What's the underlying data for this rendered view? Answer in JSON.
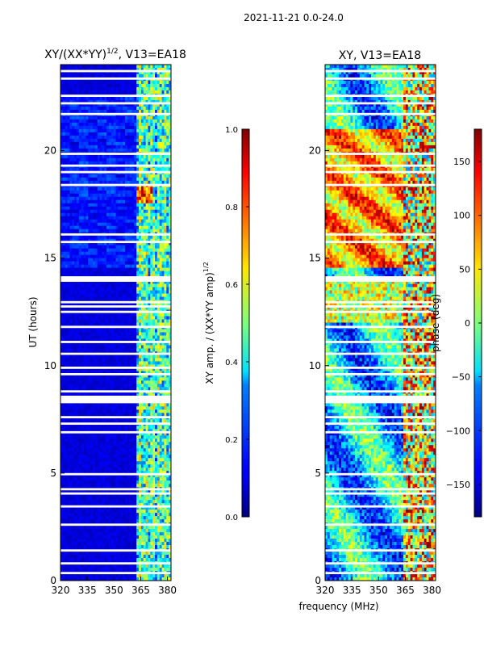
{
  "suptitle": "2021-11-21 0.0-24.0",
  "chart_data": [
    {
      "type": "heatmap",
      "title": "XY/(XX*YY)^1/2, V13=EA18",
      "title_base": "XY/(XX*YY)",
      "title_exp": "1/2",
      "title_tail": ", V13=EA18",
      "ylabel": "UT (hours)",
      "xlabel": "",
      "xlim": [
        320,
        382
      ],
      "ylim": [
        0,
        24
      ],
      "xticks": [
        "320",
        "335",
        "350",
        "365",
        "380"
      ],
      "xtick_values": [
        320,
        335,
        350,
        365,
        380
      ],
      "yticks": [
        "0",
        "5",
        "10",
        "15",
        "20"
      ],
      "ytick_values": [
        0,
        5,
        10,
        15,
        20
      ],
      "colorbar": {
        "label": "XY amp. / (XX*YY amp)^1/2",
        "label_base": "XY amp. / (XX*YY amp)",
        "label_exp": "1/2",
        "range": [
          0.0,
          1.0
        ],
        "ticks": [
          "0.0",
          "0.2",
          "0.4",
          "0.6",
          "0.8",
          "1.0"
        ],
        "tick_values": [
          0.0,
          0.2,
          0.4,
          0.6,
          0.8,
          1.0
        ],
        "colormap": "jet"
      },
      "flagged_rows_hours": [
        23.7,
        23.35,
        22.55,
        22.2,
        21.7,
        19.85,
        19.3,
        19.0,
        18.4,
        16.1,
        15.75,
        14.1,
        13.95,
        12.95,
        12.75,
        12.5,
        11.8,
        11.1,
        10.55,
        9.9,
        9.6,
        8.8,
        8.55,
        8.4,
        7.6,
        7.3,
        6.9,
        4.95,
        4.25,
        4.05,
        3.45,
        2.6,
        1.4,
        0.8,
        0.35
      ]
    },
    {
      "type": "heatmap",
      "title": "XY, V13=EA18",
      "xlabel": "frequency (MHz)",
      "ylabel": "",
      "xlim": [
        320,
        382
      ],
      "ylim": [
        0,
        24
      ],
      "xticks": [
        "320",
        "335",
        "350",
        "365",
        "380"
      ],
      "xtick_values": [
        320,
        335,
        350,
        365,
        380
      ],
      "yticks": [
        "0",
        "5",
        "10",
        "15",
        "20"
      ],
      "ytick_values": [
        0,
        5,
        10,
        15,
        20
      ],
      "colorbar": {
        "label": "phase (deg)",
        "range": [
          -180,
          180
        ],
        "ticks": [
          "−150",
          "−100",
          "−50",
          "0",
          "50",
          "100",
          "150"
        ],
        "tick_values": [
          -150,
          -100,
          -50,
          0,
          50,
          100,
          150
        ],
        "colormap": "jet"
      },
      "flagged_rows_hours": [
        23.7,
        23.35,
        22.55,
        22.2,
        21.7,
        19.85,
        19.3,
        19.0,
        18.4,
        16.1,
        15.75,
        14.1,
        13.95,
        12.95,
        12.75,
        12.5,
        11.8,
        11.1,
        10.55,
        9.9,
        9.6,
        8.8,
        8.55,
        8.4,
        7.6,
        7.3,
        6.9,
        4.95,
        4.25,
        4.05,
        3.45,
        2.6,
        1.4,
        0.8,
        0.35
      ]
    }
  ]
}
